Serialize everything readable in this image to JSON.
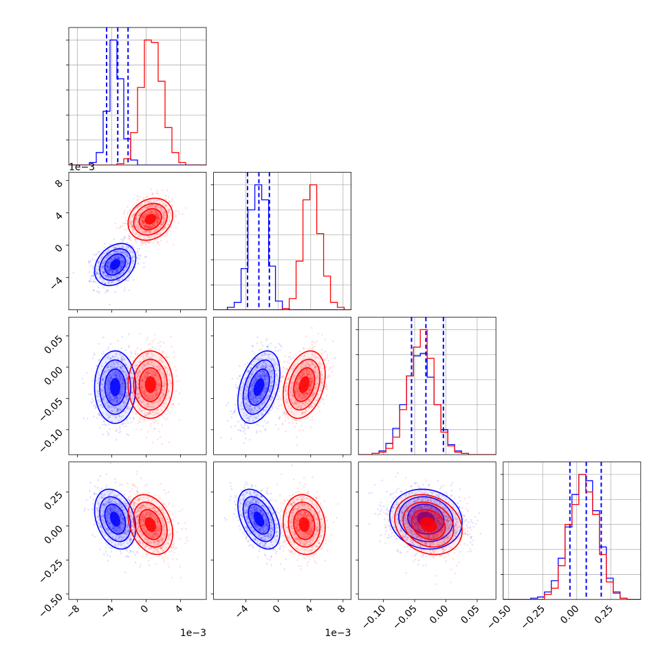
{
  "chart_data": {
    "type": "corner",
    "title": "",
    "variables": [
      {
        "range": [
          -9.0,
          7.0
        ],
        "ticks": [
          -8,
          -4,
          0,
          4
        ],
        "tick_labels": [
          "−8",
          "−4",
          "0",
          "4"
        ],
        "scale_label": "1e−3"
      },
      {
        "range": [
          -8.0,
          9.0
        ],
        "ticks": [
          -4,
          0,
          4,
          8
        ],
        "tick_labels": [
          "−4",
          "0",
          "4",
          "8"
        ],
        "y_tick_labels": [
          "−4",
          "0",
          "4",
          "8"
        ],
        "scale_label": "1e−3"
      },
      {
        "range": [
          -0.14,
          0.08
        ],
        "ticks": [
          -0.1,
          -0.05,
          0.0,
          0.05
        ],
        "tick_labels": [
          "−0.10",
          "−0.05",
          "0.00",
          "0.05"
        ],
        "scale_label": ""
      },
      {
        "range": [
          -0.54,
          0.47
        ],
        "ticks": [
          -0.5,
          -0.25,
          0.0,
          0.25
        ],
        "tick_labels": [
          "−0.50",
          "−0.25",
          "0.00",
          "0.25"
        ],
        "scale_label": ""
      }
    ],
    "series": [
      {
        "color": "#0000ff",
        "mean": [
          -3.6,
          -2.4,
          -0.032,
          0.05
        ],
        "sd": [
          1.2,
          1.3,
          0.029,
          0.11
        ],
        "corr": [
          [
            1,
            0.3,
            0.0,
            -0.3
          ],
          [
            0.3,
            1,
            0.4,
            -0.45
          ],
          [
            0.0,
            0.4,
            1,
            -0.1
          ],
          [
            -0.3,
            -0.45,
            -0.1,
            1
          ]
        ],
        "quantile_lines": [
          [
            -4.6,
            -3.3,
            -2.1
          ],
          [
            -3.8,
            -2.4,
            -1.1
          ],
          [
            -0.055,
            -0.032,
            -0.004
          ],
          [
            -0.05,
            0.07,
            0.18
          ]
        ],
        "histograms": [
          {
            "bin_start": -9.0,
            "bin_width": 0.8,
            "counts": [
              0,
              0,
              0,
              2,
              10,
              43,
              100,
              69,
              21,
              4,
              0,
              0,
              0,
              0,
              0,
              0,
              0,
              0,
              0,
              0
            ]
          },
          {
            "bin_start": -8.0,
            "bin_width": 0.85,
            "counts": [
              0,
              0,
              2,
              6,
              33,
              80,
              100,
              88,
              35,
              7,
              1,
              0,
              0,
              0,
              0,
              0,
              0,
              0,
              0,
              0
            ]
          },
          {
            "bin_start": -0.14,
            "bin_width": 0.011,
            "counts": [
              0,
              0,
              1,
              3,
              9,
              21,
              40,
              63,
              79,
              81,
              62,
              40,
              20,
              8,
              3,
              1,
              0,
              0,
              0,
              0
            ]
          },
          {
            "bin_start": -0.54,
            "bin_width": 0.0505,
            "counts": [
              0,
              0,
              0,
              0,
              1,
              2,
              6,
              15,
              33,
              58,
              84,
              100,
              95,
              71,
              42,
              17,
              6,
              1,
              0,
              0
            ]
          }
        ]
      },
      {
        "color": "#ff0000",
        "mean": [
          0.5,
          3.2,
          -0.028,
          0.01
        ],
        "sd": [
          1.3,
          1.3,
          0.027,
          0.11
        ],
        "corr": [
          [
            1,
            0.2,
            0.0,
            -0.3
          ],
          [
            0.2,
            1,
            0.3,
            -0.1
          ],
          [
            0.0,
            0.3,
            1,
            -0.2
          ],
          [
            -0.3,
            -0.1,
            -0.2,
            1
          ]
        ],
        "quantile_lines": [],
        "histograms": [
          {
            "bin_start": -9.0,
            "bin_width": 0.8,
            "counts": [
              0,
              0,
              0,
              0,
              0,
              0,
              0,
              1,
              5,
              26,
              62,
              100,
              98,
              67,
              30,
              10,
              2,
              0,
              0,
              0
            ]
          },
          {
            "bin_start": -8.0,
            "bin_width": 0.85,
            "counts": [
              0,
              0,
              0,
              0,
              0,
              0,
              0,
              0,
              0,
              0,
              1,
              9,
              39,
              88,
              100,
              61,
              27,
              6,
              2,
              0
            ]
          },
          {
            "bin_start": -0.14,
            "bin_width": 0.011,
            "counts": [
              0,
              0,
              1,
              2,
              5,
              14,
              36,
              63,
              86,
              100,
              77,
              40,
              18,
              7,
              2,
              1,
              0,
              0,
              0,
              0
            ]
          },
          {
            "bin_start": -0.54,
            "bin_width": 0.0505,
            "counts": [
              0,
              0,
              0,
              0,
              0,
              0,
              4,
              9,
              27,
              60,
              76,
              100,
              86,
              68,
              36,
              14,
              5,
              1,
              0,
              0
            ]
          }
        ]
      }
    ]
  }
}
